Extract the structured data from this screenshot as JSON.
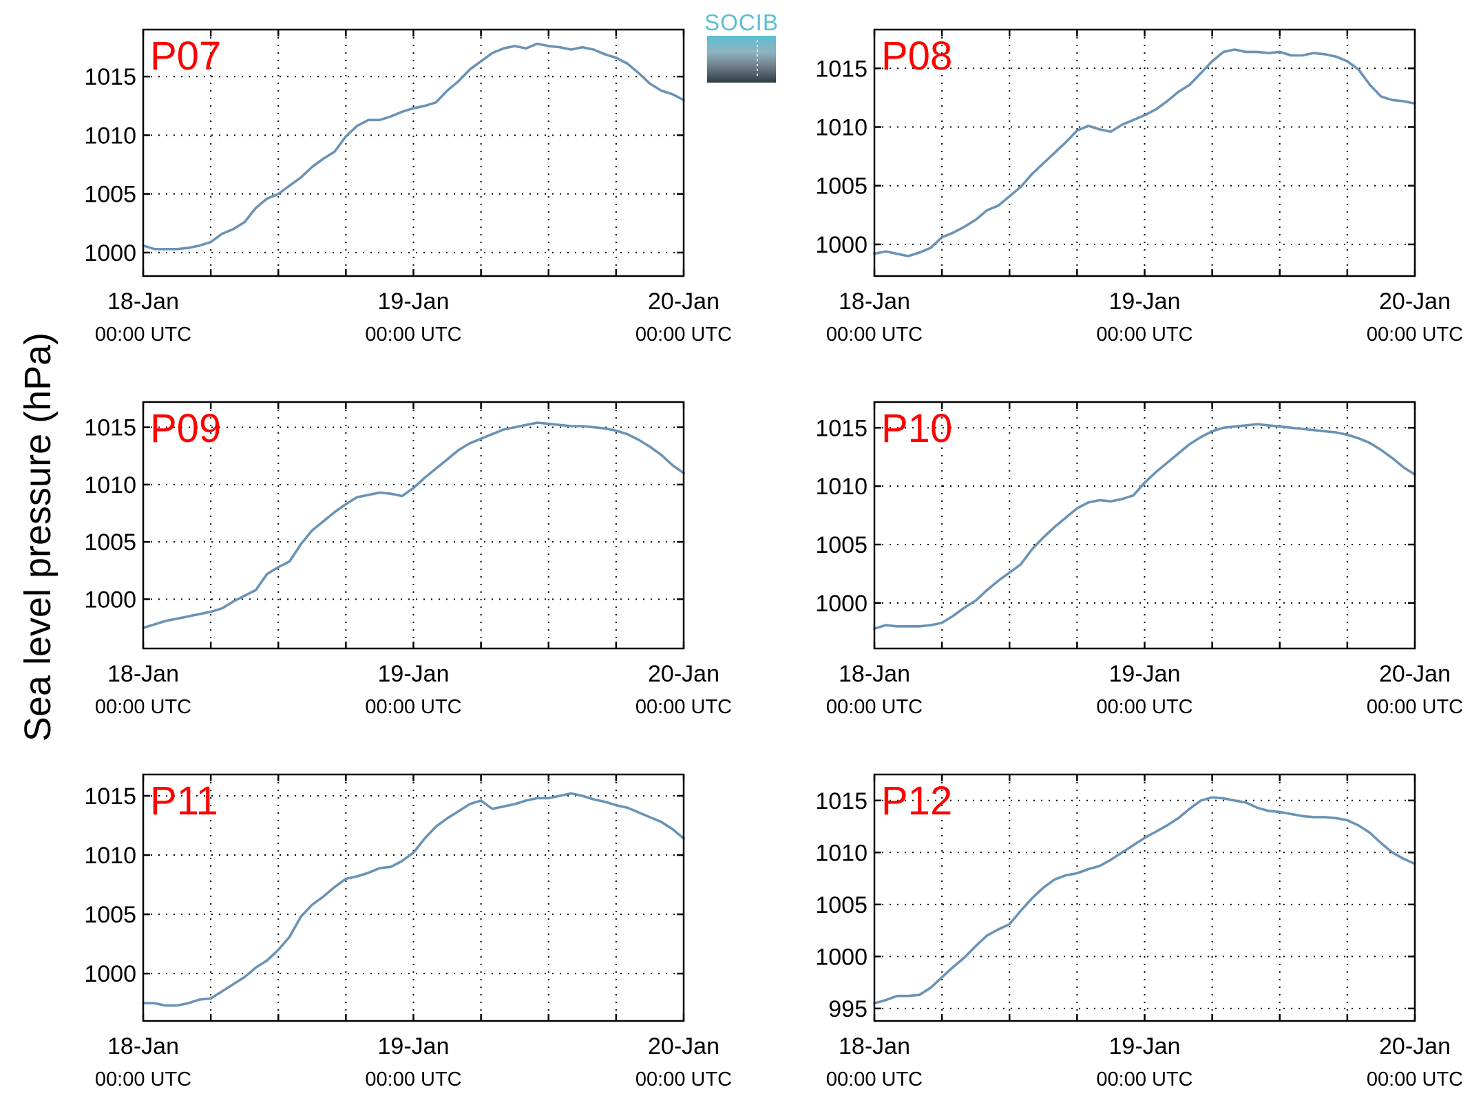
{
  "figure": {
    "ylabel": "Sea level pressure (hPa)",
    "colors": {
      "series": "#6a93b5",
      "panel_label": "#ff0000",
      "logo_text": "#5bbfd1"
    },
    "logo": {
      "text": "SOCIB",
      "icon": "socib-logo-icon"
    }
  },
  "chart_data": [
    {
      "type": "line",
      "title": "",
      "panel_label": "P07",
      "xlabel": "",
      "ylabel": "",
      "x_ticks": [
        {
          "line1": "18-Jan",
          "line2": "00:00 UTC"
        },
        {
          "line1": "19-Jan",
          "line2": "00:00 UTC"
        },
        {
          "line1": "20-Jan",
          "line2": "00:00 UTC"
        }
      ],
      "x_unit": "hours since 18-Jan 00:00 UTC",
      "xlim": [
        0,
        48
      ],
      "x_grid_step_hours": 6,
      "ylim": [
        998,
        1019
      ],
      "y_ticks": [
        1000,
        1005,
        1010,
        1015
      ],
      "grid": true,
      "series": [
        {
          "x": [
            0,
            1,
            2,
            3,
            4,
            5,
            6,
            7,
            8,
            9,
            10,
            11,
            12,
            13,
            14,
            15,
            16,
            17,
            18,
            19,
            20,
            21,
            22,
            23,
            24,
            25,
            26,
            27,
            28,
            29,
            30,
            31,
            32,
            33,
            34,
            35,
            36,
            37,
            38,
            39,
            40,
            41,
            42,
            43,
            44,
            45,
            46,
            47,
            48
          ],
          "values": [
            1000.6,
            1000.3,
            1000.3,
            1000.3,
            1000.4,
            1000.6,
            1000.9,
            1001.6,
            1002.0,
            1002.6,
            1003.8,
            1004.6,
            1005.0,
            1005.7,
            1006.4,
            1007.3,
            1008.0,
            1008.6,
            1009.9,
            1010.8,
            1011.3,
            1011.3,
            1011.6,
            1012.0,
            1012.3,
            1012.5,
            1012.8,
            1013.8,
            1014.6,
            1015.6,
            1016.3,
            1017.0,
            1017.4,
            1017.6,
            1017.4,
            1017.8,
            1017.6,
            1017.5,
            1017.3,
            1017.5,
            1017.3,
            1016.9,
            1016.6,
            1016.1,
            1015.3,
            1014.4,
            1013.8,
            1013.5,
            1013.0
          ]
        }
      ]
    },
    {
      "type": "line",
      "title": "",
      "panel_label": "P08",
      "xlabel": "",
      "ylabel": "",
      "x_ticks": [
        {
          "line1": "18-Jan",
          "line2": "00:00 UTC"
        },
        {
          "line1": "19-Jan",
          "line2": "00:00 UTC"
        },
        {
          "line1": "20-Jan",
          "line2": "00:00 UTC"
        }
      ],
      "x_unit": "hours since 18-Jan 00:00 UTC",
      "xlim": [
        0,
        48
      ],
      "x_grid_step_hours": 6,
      "ylim": [
        997.3,
        1018.3
      ],
      "y_ticks": [
        1000,
        1005,
        1010,
        1015
      ],
      "grid": true,
      "series": [
        {
          "x": [
            0,
            1,
            2,
            3,
            4,
            5,
            6,
            7,
            8,
            9,
            10,
            11,
            12,
            13,
            14,
            15,
            16,
            17,
            18,
            19,
            20,
            21,
            22,
            23,
            24,
            25,
            26,
            27,
            28,
            29,
            30,
            31,
            32,
            33,
            34,
            35,
            36,
            37,
            38,
            39,
            40,
            41,
            42,
            43,
            44,
            45,
            46,
            47,
            48
          ],
          "values": [
            999.2,
            999.4,
            999.2,
            999.0,
            999.3,
            999.7,
            1000.6,
            1001.0,
            1001.5,
            1002.1,
            1002.9,
            1003.3,
            1004.1,
            1004.9,
            1006.0,
            1006.9,
            1007.8,
            1008.7,
            1009.7,
            1010.1,
            1009.8,
            1009.6,
            1010.2,
            1010.6,
            1011.0,
            1011.5,
            1012.2,
            1013.0,
            1013.6,
            1014.6,
            1015.6,
            1016.4,
            1016.6,
            1016.4,
            1016.4,
            1016.3,
            1016.4,
            1016.1,
            1016.1,
            1016.3,
            1016.2,
            1016.0,
            1015.6,
            1014.9,
            1013.6,
            1012.6,
            1012.3,
            1012.2,
            1012.0
          ]
        }
      ]
    },
    {
      "type": "line",
      "title": "",
      "panel_label": "P09",
      "xlabel": "",
      "ylabel": "",
      "x_ticks": [
        {
          "line1": "18-Jan",
          "line2": "00:00 UTC"
        },
        {
          "line1": "19-Jan",
          "line2": "00:00 UTC"
        },
        {
          "line1": "20-Jan",
          "line2": "00:00 UTC"
        }
      ],
      "x_unit": "hours since 18-Jan 00:00 UTC",
      "xlim": [
        0,
        48
      ],
      "x_grid_step_hours": 6,
      "ylim": [
        995.7,
        1017.2
      ],
      "y_ticks": [
        1000,
        1005,
        1010,
        1015
      ],
      "grid": true,
      "series": [
        {
          "x": [
            0,
            1,
            2,
            3,
            4,
            5,
            6,
            7,
            8,
            9,
            10,
            11,
            12,
            13,
            14,
            15,
            16,
            17,
            18,
            19,
            20,
            21,
            22,
            23,
            24,
            25,
            26,
            27,
            28,
            29,
            30,
            31,
            32,
            33,
            34,
            35,
            36,
            37,
            38,
            39,
            40,
            41,
            42,
            43,
            44,
            45,
            46,
            47,
            48
          ],
          "values": [
            997.5,
            997.8,
            998.1,
            998.3,
            998.5,
            998.7,
            998.9,
            999.2,
            999.8,
            1000.3,
            1000.8,
            1002.2,
            1002.8,
            1003.3,
            1004.8,
            1006.0,
            1006.8,
            1007.6,
            1008.3,
            1008.9,
            1009.1,
            1009.3,
            1009.2,
            1009.0,
            1009.7,
            1010.6,
            1011.4,
            1012.2,
            1013.0,
            1013.6,
            1014.0,
            1014.4,
            1014.8,
            1015.0,
            1015.2,
            1015.4,
            1015.3,
            1015.2,
            1015.1,
            1015.1,
            1015.0,
            1014.9,
            1014.7,
            1014.4,
            1013.9,
            1013.3,
            1012.6,
            1011.7,
            1011.0
          ]
        }
      ]
    },
    {
      "type": "line",
      "title": "",
      "panel_label": "P10",
      "xlabel": "",
      "ylabel": "",
      "x_ticks": [
        {
          "line1": "18-Jan",
          "line2": "00:00 UTC"
        },
        {
          "line1": "19-Jan",
          "line2": "00:00 UTC"
        },
        {
          "line1": "20-Jan",
          "line2": "00:00 UTC"
        }
      ],
      "x_unit": "hours since 18-Jan 00:00 UTC",
      "xlim": [
        0,
        48
      ],
      "x_grid_step_hours": 6,
      "ylim": [
        996.1,
        1017.2
      ],
      "y_ticks": [
        1000,
        1005,
        1010,
        1015
      ],
      "grid": true,
      "series": [
        {
          "x": [
            0,
            1,
            2,
            3,
            4,
            5,
            6,
            7,
            8,
            9,
            10,
            11,
            12,
            13,
            14,
            15,
            16,
            17,
            18,
            19,
            20,
            21,
            22,
            23,
            24,
            25,
            26,
            27,
            28,
            29,
            30,
            31,
            32,
            33,
            34,
            35,
            36,
            37,
            38,
            39,
            40,
            41,
            42,
            43,
            44,
            45,
            46,
            47,
            48
          ],
          "values": [
            997.8,
            998.1,
            998.0,
            998.0,
            998.0,
            998.1,
            998.3,
            998.9,
            999.6,
            1000.2,
            1001.1,
            1001.9,
            1002.6,
            1003.3,
            1004.6,
            1005.6,
            1006.5,
            1007.3,
            1008.1,
            1008.6,
            1008.8,
            1008.7,
            1008.9,
            1009.2,
            1010.3,
            1011.2,
            1012.0,
            1012.8,
            1013.6,
            1014.2,
            1014.7,
            1015.0,
            1015.1,
            1015.2,
            1015.3,
            1015.2,
            1015.1,
            1015.0,
            1014.9,
            1014.8,
            1014.7,
            1014.6,
            1014.4,
            1014.1,
            1013.7,
            1013.1,
            1012.4,
            1011.6,
            1011.0
          ]
        }
      ]
    },
    {
      "type": "line",
      "title": "",
      "panel_label": "P11",
      "xlabel": "",
      "ylabel": "",
      "x_ticks": [
        {
          "line1": "18-Jan",
          "line2": "00:00 UTC"
        },
        {
          "line1": "19-Jan",
          "line2": "00:00 UTC"
        },
        {
          "line1": "20-Jan",
          "line2": "00:00 UTC"
        }
      ],
      "x_unit": "hours since 18-Jan 00:00 UTC",
      "xlim": [
        0,
        48
      ],
      "x_grid_step_hours": 6,
      "ylim": [
        996.0,
        1016.8
      ],
      "y_ticks": [
        1000,
        1005,
        1010,
        1015
      ],
      "grid": true,
      "series": [
        {
          "x": [
            0,
            1,
            2,
            3,
            4,
            5,
            6,
            7,
            8,
            9,
            10,
            11,
            12,
            13,
            14,
            15,
            16,
            17,
            18,
            19,
            20,
            21,
            22,
            23,
            24,
            25,
            26,
            27,
            28,
            29,
            30,
            31,
            32,
            33,
            34,
            35,
            36,
            37,
            38,
            39,
            40,
            41,
            42,
            43,
            44,
            45,
            46,
            47,
            48
          ],
          "values": [
            997.5,
            997.5,
            997.3,
            997.3,
            997.5,
            997.8,
            997.9,
            998.5,
            999.1,
            999.7,
            1000.5,
            1001.1,
            1002.0,
            1003.1,
            1004.8,
            1005.8,
            1006.5,
            1007.3,
            1008.0,
            1008.2,
            1008.5,
            1008.9,
            1009.0,
            1009.5,
            1010.2,
            1011.4,
            1012.4,
            1013.1,
            1013.7,
            1014.3,
            1014.6,
            1013.9,
            1014.1,
            1014.3,
            1014.6,
            1014.8,
            1014.8,
            1015.0,
            1015.2,
            1015.0,
            1014.7,
            1014.5,
            1014.2,
            1014.0,
            1013.6,
            1013.2,
            1012.8,
            1012.2,
            1011.4
          ]
        }
      ]
    },
    {
      "type": "line",
      "title": "",
      "panel_label": "P12",
      "xlabel": "",
      "ylabel": "",
      "x_ticks": [
        {
          "line1": "18-Jan",
          "line2": "00:00 UTC"
        },
        {
          "line1": "19-Jan",
          "line2": "00:00 UTC"
        },
        {
          "line1": "20-Jan",
          "line2": "00:00 UTC"
        }
      ],
      "x_unit": "hours since 18-Jan 00:00 UTC",
      "xlim": [
        0,
        48
      ],
      "x_grid_step_hours": 6,
      "ylim": [
        993.8,
        1017.5
      ],
      "y_ticks": [
        995,
        1000,
        1005,
        1010,
        1015
      ],
      "grid": true,
      "series": [
        {
          "x": [
            0,
            1,
            2,
            3,
            4,
            5,
            6,
            7,
            8,
            9,
            10,
            11,
            12,
            13,
            14,
            15,
            16,
            17,
            18,
            19,
            20,
            21,
            22,
            23,
            24,
            25,
            26,
            27,
            28,
            29,
            30,
            31,
            32,
            33,
            34,
            35,
            36,
            37,
            38,
            39,
            40,
            41,
            42,
            43,
            44,
            45,
            46,
            47,
            48
          ],
          "values": [
            995.5,
            995.8,
            996.2,
            996.2,
            996.3,
            997.0,
            998.0,
            999.0,
            999.9,
            1001.0,
            1002.0,
            1002.6,
            1003.1,
            1004.4,
            1005.6,
            1006.6,
            1007.4,
            1007.8,
            1008.0,
            1008.4,
            1008.7,
            1009.3,
            1010.0,
            1010.7,
            1011.4,
            1012.0,
            1012.6,
            1013.3,
            1014.2,
            1015.0,
            1015.3,
            1015.2,
            1015.0,
            1014.8,
            1014.3,
            1014.0,
            1013.9,
            1013.7,
            1013.5,
            1013.4,
            1013.4,
            1013.3,
            1013.1,
            1012.6,
            1011.9,
            1010.9,
            1010.0,
            1009.4,
            1008.9
          ]
        }
      ]
    }
  ]
}
